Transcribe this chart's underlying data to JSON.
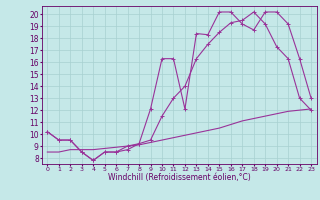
{
  "xlabel": "Windchill (Refroidissement éolien,°C)",
  "bg_color": "#c5e8e8",
  "line_color": "#993399",
  "grid_color": "#a8d0d0",
  "text_color": "#660066",
  "x_ticks": [
    0,
    1,
    2,
    3,
    4,
    5,
    6,
    7,
    8,
    9,
    10,
    11,
    12,
    13,
    14,
    15,
    16,
    17,
    18,
    19,
    20,
    21,
    22,
    23
  ],
  "y_ticks": [
    8,
    9,
    10,
    11,
    12,
    13,
    14,
    15,
    16,
    17,
    18,
    19,
    20
  ],
  "xlim": [
    -0.5,
    23.5
  ],
  "ylim": [
    7.5,
    20.7
  ],
  "line1_x": [
    0,
    1,
    2,
    3,
    4,
    5,
    6,
    7,
    8,
    9,
    10,
    11,
    12,
    13,
    14,
    15,
    16,
    17,
    18,
    19,
    20,
    21,
    22,
    23
  ],
  "line1_y": [
    10.2,
    9.5,
    9.5,
    8.5,
    7.8,
    8.5,
    8.5,
    8.7,
    9.2,
    12.1,
    16.3,
    16.3,
    12.1,
    18.4,
    18.3,
    20.2,
    20.2,
    19.2,
    18.7,
    20.2,
    20.2,
    19.2,
    16.3,
    13.0
  ],
  "line2_x": [
    0,
    1,
    2,
    3,
    4,
    5,
    6,
    7,
    8,
    9,
    10,
    11,
    12,
    13,
    14,
    15,
    16,
    17,
    18,
    19,
    20,
    21,
    22,
    23
  ],
  "line2_y": [
    10.2,
    9.5,
    9.5,
    8.5,
    7.8,
    8.5,
    8.5,
    9.0,
    9.2,
    9.5,
    11.5,
    13.0,
    14.0,
    16.3,
    17.5,
    18.5,
    19.3,
    19.5,
    20.2,
    19.2,
    17.3,
    16.3,
    13.0,
    12.0
  ],
  "line3_x": [
    0,
    1,
    2,
    3,
    4,
    5,
    6,
    7,
    8,
    9,
    10,
    11,
    12,
    13,
    14,
    15,
    16,
    17,
    18,
    19,
    20,
    21,
    22,
    23
  ],
  "line3_y": [
    8.5,
    8.5,
    8.7,
    8.7,
    8.7,
    8.8,
    8.9,
    9.0,
    9.1,
    9.3,
    9.5,
    9.7,
    9.9,
    10.1,
    10.3,
    10.5,
    10.8,
    11.1,
    11.3,
    11.5,
    11.7,
    11.9,
    12.0,
    12.1
  ],
  "marker_size": 2.5,
  "line_width": 0.8
}
